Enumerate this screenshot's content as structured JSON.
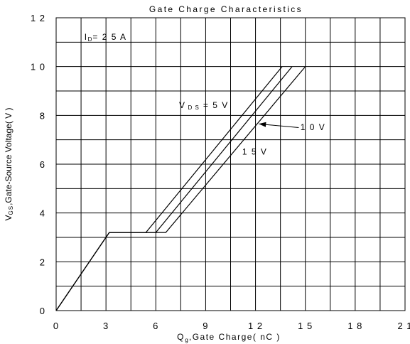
{
  "chart_data": {
    "type": "line",
    "title": "Gate Charge Characteristics",
    "xlabel": {
      "main": "Q",
      "sub": "g",
      "rest": ",Gate Charge( nC )"
    },
    "ylabel": {
      "main": "V",
      "sub": "GS",
      "rest": ",Gate-Source Voltage( V )"
    },
    "xlim": [
      0,
      21
    ],
    "ylim": [
      0,
      12
    ],
    "x_ticks": [
      0,
      3,
      6,
      9,
      12,
      15,
      18,
      21
    ],
    "y_ticks": [
      0,
      2,
      4,
      6,
      8,
      10,
      12
    ],
    "x_tick_labels": [
      "0",
      "3",
      "6",
      "9",
      "1 2",
      "1 5",
      "1 8",
      "2 1"
    ],
    "y_tick_labels": [
      "0",
      "2",
      "4",
      "6",
      "8",
      "1 0",
      "1 2"
    ],
    "grid": true,
    "grid_x_step": 1.5,
    "grid_y_step": 1,
    "colors": {
      "line": "#000000",
      "grid": "#000000",
      "background": "#ffffff"
    },
    "series": [
      {
        "name": "5 V",
        "x": [
          0,
          3.2,
          5.4,
          13.6
        ],
        "y": [
          0,
          3.2,
          3.2,
          10
        ]
      },
      {
        "name": "10 V",
        "x": [
          0,
          3.2,
          6.0,
          14.2
        ],
        "y": [
          0,
          3.2,
          3.2,
          10
        ]
      },
      {
        "name": "15 V",
        "x": [
          0,
          3.2,
          6.6,
          15.0
        ],
        "y": [
          0,
          3.2,
          3.2,
          10
        ]
      }
    ],
    "annotations": {
      "id_label": {
        "main": "I",
        "sub": "D",
        "rest": "= 2 5 A",
        "x": 1.7,
        "y": 11.1
      },
      "vds_label": {
        "main": "V",
        "sub": "D S",
        "rest": "= 5 V",
        "x": 7.4,
        "y": 8.3
      },
      "label_10v": {
        "text": "1 0 V",
        "x": 14.7,
        "y": 7.4
      },
      "label_15v": {
        "text": "1 5 V",
        "x": 11.2,
        "y": 6.4
      },
      "arrow": {
        "from": [
          14.6,
          7.5
        ],
        "to": [
          12.2,
          7.65
        ]
      }
    }
  }
}
